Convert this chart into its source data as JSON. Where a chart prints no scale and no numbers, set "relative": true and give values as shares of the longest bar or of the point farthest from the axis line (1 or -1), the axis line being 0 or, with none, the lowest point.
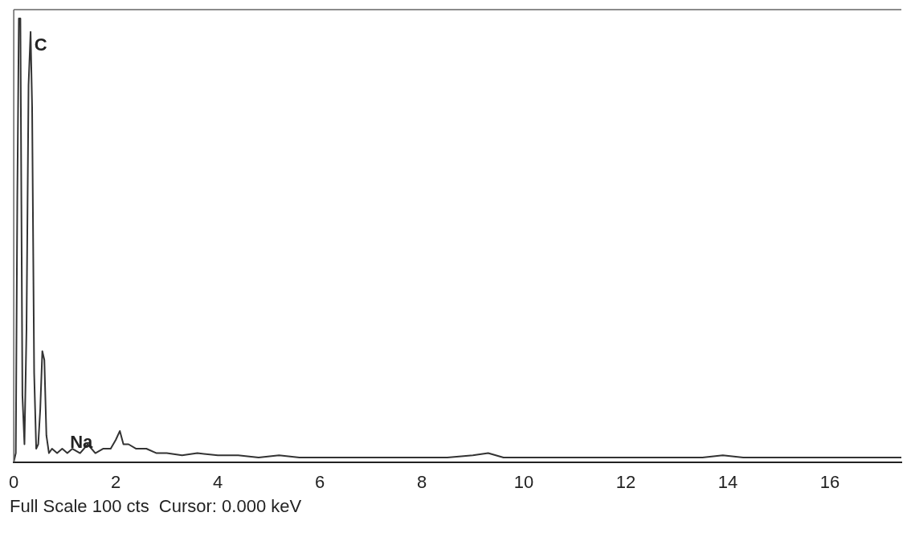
{
  "chart_data": {
    "type": "line",
    "relative": true,
    "xlim": [
      0,
      17.4
    ],
    "xticks": [
      0,
      2,
      4,
      6,
      8,
      10,
      12,
      14,
      16
    ],
    "grid": false,
    "legend": false,
    "marker": "none",
    "line_style": "solid",
    "x": [
      0,
      0.04,
      0.07,
      0.1,
      0.13,
      0.17,
      0.21,
      0.25,
      0.29,
      0.33,
      0.36,
      0.4,
      0.44,
      0.48,
      0.52,
      0.56,
      0.6,
      0.64,
      0.69,
      0.75,
      0.85,
      0.95,
      1.05,
      1.15,
      1.3,
      1.45,
      1.6,
      1.75,
      1.9,
      2.0,
      2.08,
      2.15,
      2.25,
      2.4,
      2.6,
      2.8,
      3.0,
      3.3,
      3.6,
      4.0,
      4.4,
      4.8,
      5.2,
      5.6,
      6.0,
      6.5,
      7.0,
      7.5,
      8.0,
      8.5,
      9.0,
      9.3,
      9.6,
      10.0,
      10.5,
      11.0,
      11.5,
      12.0,
      12.5,
      13.0,
      13.5,
      13.9,
      14.3,
      14.8,
      15.3,
      15.8,
      16.3,
      16.8,
      17.4
    ],
    "series": [
      {
        "color": "#333333",
        "values": [
          0,
          0.02,
          0.6,
          1,
          1,
          0.15,
          0.04,
          0.3,
          0.85,
          0.97,
          0.8,
          0.2,
          0.03,
          0.04,
          0.12,
          0.25,
          0.23,
          0.06,
          0.02,
          0.03,
          0.02,
          0.03,
          0.02,
          0.03,
          0.02,
          0.04,
          0.02,
          0.03,
          0.03,
          0.05,
          0.07,
          0.04,
          0.04,
          0.03,
          0.03,
          0.02,
          0.02,
          0.015,
          0.02,
          0.015,
          0.015,
          0.01,
          0.015,
          0.01,
          0.01,
          0.01,
          0.01,
          0.01,
          0.01,
          0.01,
          0.015,
          0.02,
          0.01,
          0.01,
          0.01,
          0.01,
          0.01,
          0.01,
          0.01,
          0.01,
          0.01,
          0.015,
          0.01,
          0.01,
          0.01,
          0.01,
          0.01,
          0.01,
          0.01
        ]
      }
    ],
    "annotations": [
      {
        "text": "C",
        "x": 0.34,
        "y": 0.97
      },
      {
        "text": "Na",
        "x": 1.04,
        "y": 0.02
      },
      "Full Scale 100 cts  Cursor: 0.000 keV"
    ]
  }
}
